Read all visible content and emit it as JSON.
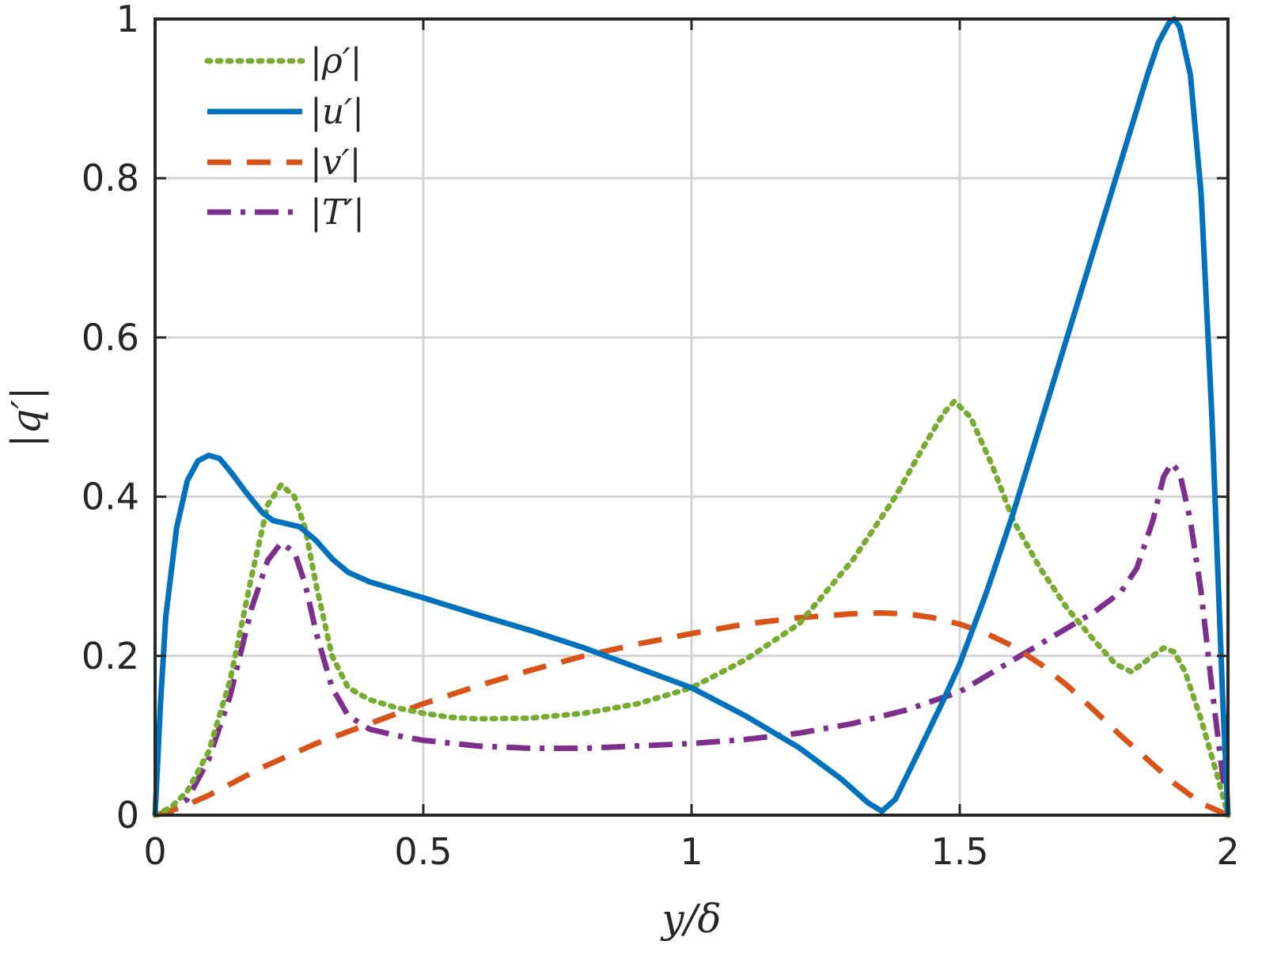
{
  "chart_data": {
    "type": "line",
    "xlabel": "y/δ",
    "ylabel": "|q′|",
    "xlim": [
      0,
      2
    ],
    "ylim": [
      0,
      1
    ],
    "xticks": [
      0,
      0.5,
      1,
      1.5,
      2
    ],
    "xtick_labels": [
      "0",
      "0.5",
      "1",
      "1.5",
      "2"
    ],
    "yticks": [
      0,
      0.2,
      0.4,
      0.6,
      0.8,
      1
    ],
    "ytick_labels": [
      "0",
      "0.2",
      "0.4",
      "0.6",
      "0.8",
      "1"
    ],
    "grid": true,
    "legend_position": "top-left",
    "series": [
      {
        "name": "|ρ′|",
        "color": "#77AC30",
        "style": "dotted",
        "x": [
          0,
          0.03,
          0.06,
          0.1,
          0.14,
          0.18,
          0.21,
          0.235,
          0.26,
          0.28,
          0.3,
          0.33,
          0.36,
          0.4,
          0.45,
          0.5,
          0.55,
          0.6,
          0.7,
          0.8,
          0.9,
          1.0,
          1.1,
          1.2,
          1.3,
          1.38,
          1.43,
          1.47,
          1.49,
          1.52,
          1.56,
          1.6,
          1.65,
          1.7,
          1.75,
          1.79,
          1.82,
          1.85,
          1.88,
          1.9,
          1.92,
          1.95,
          1.98,
          2.0
        ],
        "y": [
          0,
          0.01,
          0.03,
          0.08,
          0.17,
          0.3,
          0.39,
          0.415,
          0.4,
          0.36,
          0.29,
          0.2,
          0.16,
          0.145,
          0.135,
          0.128,
          0.123,
          0.121,
          0.122,
          0.128,
          0.14,
          0.16,
          0.195,
          0.24,
          0.32,
          0.4,
          0.46,
          0.505,
          0.52,
          0.5,
          0.44,
          0.37,
          0.31,
          0.26,
          0.22,
          0.19,
          0.18,
          0.195,
          0.21,
          0.205,
          0.18,
          0.12,
          0.05,
          0
        ]
      },
      {
        "name": "|u′|",
        "color": "#0072BD",
        "style": "solid",
        "x": [
          0,
          0.01,
          0.02,
          0.04,
          0.06,
          0.08,
          0.1,
          0.12,
          0.14,
          0.17,
          0.2,
          0.22,
          0.24,
          0.27,
          0.3,
          0.33,
          0.36,
          0.4,
          0.5,
          0.6,
          0.7,
          0.8,
          0.9,
          1.0,
          1.1,
          1.2,
          1.28,
          1.33,
          1.355,
          1.38,
          1.42,
          1.47,
          1.5,
          1.55,
          1.6,
          1.65,
          1.7,
          1.75,
          1.8,
          1.85,
          1.87,
          1.89,
          1.9,
          1.91,
          1.93,
          1.95,
          1.97,
          1.99,
          2.0
        ],
        "y": [
          0,
          0.14,
          0.25,
          0.36,
          0.42,
          0.445,
          0.452,
          0.448,
          0.432,
          0.405,
          0.38,
          0.37,
          0.367,
          0.362,
          0.345,
          0.322,
          0.305,
          0.293,
          0.273,
          0.252,
          0.232,
          0.21,
          0.185,
          0.16,
          0.125,
          0.085,
          0.045,
          0.015,
          0.005,
          0.02,
          0.075,
          0.145,
          0.19,
          0.28,
          0.38,
          0.49,
          0.6,
          0.71,
          0.82,
          0.93,
          0.97,
          0.995,
          1.0,
          0.99,
          0.93,
          0.78,
          0.5,
          0.15,
          0
        ]
      },
      {
        "name": "|v′|",
        "color": "#D95319",
        "style": "dashed",
        "x": [
          0,
          0.05,
          0.1,
          0.2,
          0.3,
          0.4,
          0.5,
          0.6,
          0.7,
          0.8,
          0.9,
          1.0,
          1.1,
          1.2,
          1.3,
          1.35,
          1.4,
          1.45,
          1.5,
          1.55,
          1.6,
          1.65,
          1.7,
          1.75,
          1.8,
          1.85,
          1.9,
          1.95,
          2.0
        ],
        "y": [
          0,
          0.01,
          0.025,
          0.06,
          0.09,
          0.115,
          0.14,
          0.162,
          0.182,
          0.2,
          0.215,
          0.228,
          0.24,
          0.248,
          0.253,
          0.254,
          0.253,
          0.248,
          0.24,
          0.228,
          0.212,
          0.19,
          0.163,
          0.132,
          0.1,
          0.07,
          0.04,
          0.015,
          0
        ]
      },
      {
        "name": "|T′|",
        "color": "#7E2F8E",
        "style": "dashdot",
        "x": [
          0,
          0.03,
          0.06,
          0.1,
          0.14,
          0.18,
          0.21,
          0.235,
          0.26,
          0.28,
          0.3,
          0.33,
          0.36,
          0.4,
          0.45,
          0.5,
          0.6,
          0.7,
          0.8,
          0.9,
          1.0,
          1.1,
          1.2,
          1.3,
          1.4,
          1.5,
          1.6,
          1.7,
          1.75,
          1.8,
          1.83,
          1.86,
          1.88,
          1.895,
          1.91,
          1.93,
          1.95,
          1.97,
          1.99,
          2.0
        ],
        "y": [
          0,
          0.005,
          0.02,
          0.07,
          0.15,
          0.26,
          0.32,
          0.342,
          0.33,
          0.29,
          0.23,
          0.16,
          0.125,
          0.108,
          0.1,
          0.094,
          0.087,
          0.084,
          0.084,
          0.087,
          0.09,
          0.095,
          0.103,
          0.115,
          0.132,
          0.155,
          0.195,
          0.235,
          0.255,
          0.28,
          0.31,
          0.37,
          0.425,
          0.442,
          0.43,
          0.37,
          0.28,
          0.16,
          0.05,
          0
        ]
      }
    ]
  }
}
